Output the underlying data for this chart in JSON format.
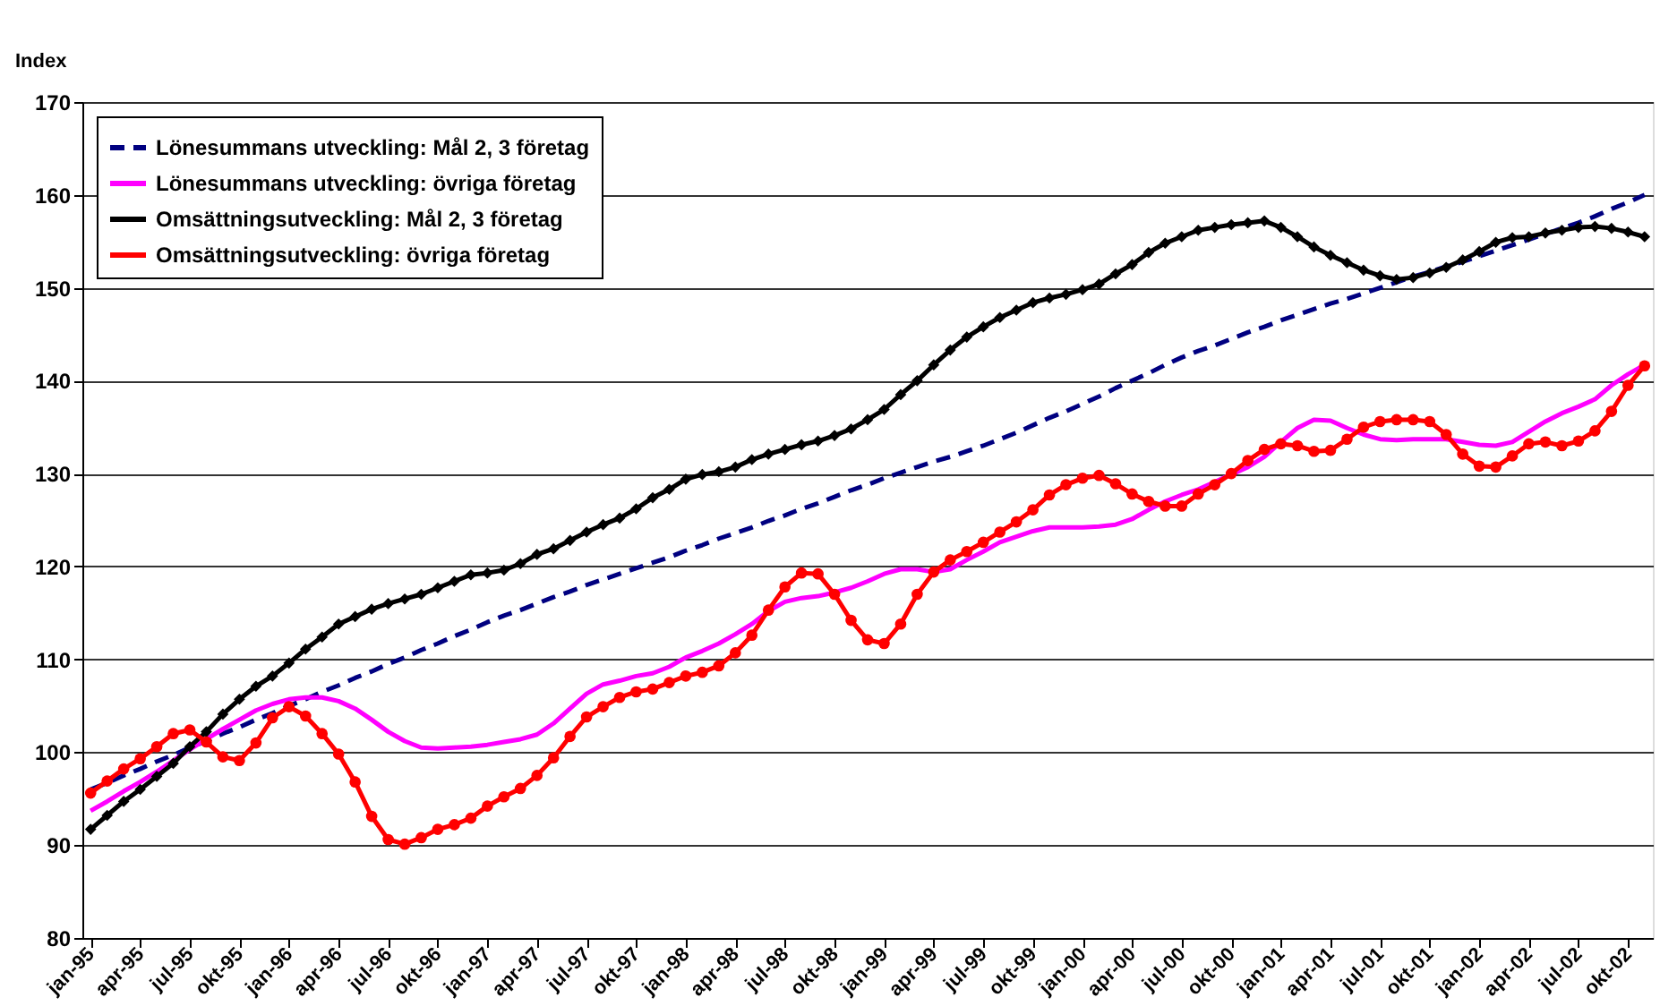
{
  "chart_data": {
    "type": "line",
    "ylabel": "Index",
    "categories": [
      "jan-95",
      null,
      null,
      "apr-95",
      null,
      null,
      "jul-95",
      null,
      null,
      "okt-95",
      null,
      null,
      "jan-96",
      null,
      null,
      "apr-96",
      null,
      null,
      "jul-96",
      null,
      null,
      "okt-96",
      null,
      null,
      "jan-97",
      null,
      null,
      "apr-97",
      null,
      null,
      "jul-97",
      null,
      null,
      "okt-97",
      null,
      null,
      "jan-98",
      null,
      null,
      "apr-98",
      null,
      null,
      "jul-98",
      null,
      null,
      "okt-98",
      null,
      null,
      "jan-99",
      null,
      null,
      "apr-99",
      null,
      null,
      "jul-99",
      null,
      null,
      "okt-99",
      null,
      null,
      "jan-00",
      null,
      null,
      "apr-00",
      null,
      null,
      "jul-00",
      null,
      null,
      "okt-00",
      null,
      null,
      "jan-01",
      null,
      null,
      "apr-01",
      null,
      null,
      "jul-01",
      null,
      null,
      "okt-01",
      null,
      null,
      "jan-02",
      null,
      null,
      "apr-02",
      null,
      null,
      "jul-02",
      null,
      null,
      "okt-02",
      null
    ],
    "ylim": [
      80,
      170
    ],
    "yticks": [
      80,
      90,
      100,
      110,
      120,
      130,
      140,
      150,
      160,
      170
    ],
    "grid": "y",
    "legend": "top left",
    "series": [
      {
        "name": "Lönesummans utveckling: Mål 2, 3 företag",
        "color": "#000080",
        "line_style": "dashed",
        "marker": "none",
        "values": [
          96,
          96.7,
          97.5,
          98.2,
          99,
          99.7,
          100.5,
          101.2,
          102,
          102.7,
          103.5,
          104.2,
          105,
          105.7,
          106.5,
          107.2,
          108,
          108.7,
          109.5,
          110.2,
          111,
          111.7,
          112.5,
          113.2,
          114,
          114.7,
          115.3,
          116,
          116.7,
          117.3,
          118,
          118.6,
          119.2,
          119.8,
          120.4,
          121,
          121.7,
          122.3,
          123,
          123.6,
          124.2,
          124.9,
          125.5,
          126.2,
          126.8,
          127.5,
          128.2,
          128.8,
          129.5,
          130.1,
          130.7,
          131.3,
          131.8,
          132.4,
          133,
          133.7,
          134.4,
          135.2,
          136,
          136.7,
          137.5,
          138.3,
          139.2,
          140,
          140.8,
          141.7,
          142.5,
          143.2,
          143.8,
          144.5,
          145.2,
          145.8,
          146.5,
          147.1,
          147.7,
          148.3,
          148.8,
          149.4,
          150,
          150.6,
          151.2,
          151.7,
          152.3,
          152.8,
          153.4,
          154,
          154.6,
          155.2,
          155.8,
          156.4,
          157,
          157.7,
          158.5,
          159.2,
          160
        ]
      },
      {
        "name": "Lönesummans utveckling: övriga företag",
        "color": "#ff00ff",
        "line_style": "solid",
        "marker": "none",
        "values": [
          93.7,
          94.7,
          95.8,
          96.8,
          97.9,
          99.1,
          100.3,
          101.4,
          102.5,
          103.5,
          104.5,
          105.2,
          105.7,
          105.9,
          105.9,
          105.5,
          104.7,
          103.5,
          102.2,
          101.2,
          100.5,
          100.4,
          100.5,
          100.6,
          100.8,
          101.1,
          101.4,
          101.9,
          103.1,
          104.7,
          106.3,
          107.3,
          107.7,
          108.2,
          108.5,
          109.2,
          110.2,
          110.9,
          111.7,
          112.7,
          113.8,
          115.2,
          116.2,
          116.6,
          116.8,
          117.2,
          117.7,
          118.4,
          119.2,
          119.7,
          119.7,
          119.4,
          119.7,
          120.7,
          121.6,
          122.6,
          123.2,
          123.8,
          124.2,
          124.2,
          124.2,
          124.3,
          124.5,
          125.1,
          126.1,
          127,
          127.7,
          128.3,
          129.1,
          129.9,
          130.7,
          131.8,
          133.4,
          134.9,
          135.8,
          135.7,
          134.9,
          134.2,
          133.7,
          133.6,
          133.7,
          133.7,
          133.7,
          133.4,
          133.1,
          133,
          133.4,
          134.5,
          135.6,
          136.5,
          137.2,
          138,
          139.5,
          140.7,
          141.7
        ]
      },
      {
        "name": "Omsättningsutveckling: Mål 2, 3 företag",
        "color": "#000000",
        "line_style": "solid",
        "marker": "diamond",
        "values": [
          91.7,
          93.2,
          94.7,
          96,
          97.4,
          98.8,
          100.6,
          102.2,
          104.1,
          105.7,
          107.1,
          108.2,
          109.6,
          111.1,
          112.4,
          113.8,
          114.6,
          115.4,
          116,
          116.5,
          117,
          117.7,
          118.4,
          119.1,
          119.3,
          119.6,
          120.3,
          121.3,
          121.9,
          122.8,
          123.7,
          124.5,
          125.2,
          126.2,
          127.4,
          128.3,
          129.4,
          129.9,
          130.2,
          130.7,
          131.5,
          132.1,
          132.6,
          133.1,
          133.5,
          134.1,
          134.8,
          135.8,
          136.9,
          138.5,
          140,
          141.7,
          143.3,
          144.7,
          145.8,
          146.8,
          147.6,
          148.4,
          148.9,
          149.3,
          149.8,
          150.4,
          151.5,
          152.5,
          153.8,
          154.8,
          155.5,
          156.2,
          156.5,
          156.8,
          157,
          157.2,
          156.5,
          155.5,
          154.4,
          153.5,
          152.7,
          151.9,
          151.3,
          150.9,
          151.1,
          151.6,
          152.2,
          153,
          153.9,
          154.9,
          155.4,
          155.5,
          155.9,
          156.2,
          156.5,
          156.6,
          156.4,
          156,
          155.5
        ]
      },
      {
        "name": "Omsättningsutveckling: övriga företag",
        "color": "#ff0000",
        "line_style": "solid",
        "marker": "circle",
        "values": [
          95.6,
          96.9,
          98.2,
          99.3,
          100.6,
          102,
          102.4,
          101.1,
          99.5,
          99.1,
          101,
          103.7,
          104.9,
          103.9,
          102,
          99.8,
          96.8,
          93.1,
          90.6,
          90.1,
          90.8,
          91.7,
          92.2,
          92.9,
          94.2,
          95.2,
          96.1,
          97.5,
          99.4,
          101.7,
          103.8,
          104.9,
          105.9,
          106.5,
          106.8,
          107.5,
          108.2,
          108.6,
          109.3,
          110.7,
          112.6,
          115.3,
          117.8,
          119.3,
          119.2,
          117,
          114.2,
          112.1,
          111.7,
          113.8,
          117,
          119.4,
          120.7,
          121.6,
          122.6,
          123.7,
          124.8,
          126.1,
          127.7,
          128.8,
          129.5,
          129.8,
          128.9,
          127.8,
          127,
          126.5,
          126.5,
          127.8,
          128.8,
          130,
          131.4,
          132.6,
          133.2,
          133,
          132.4,
          132.5,
          133.7,
          135,
          135.6,
          135.8,
          135.8,
          135.6,
          134.2,
          132.1,
          130.8,
          130.7,
          131.9,
          133.2,
          133.4,
          133,
          133.5,
          134.6,
          136.7,
          139.5,
          141.6
        ]
      }
    ]
  }
}
